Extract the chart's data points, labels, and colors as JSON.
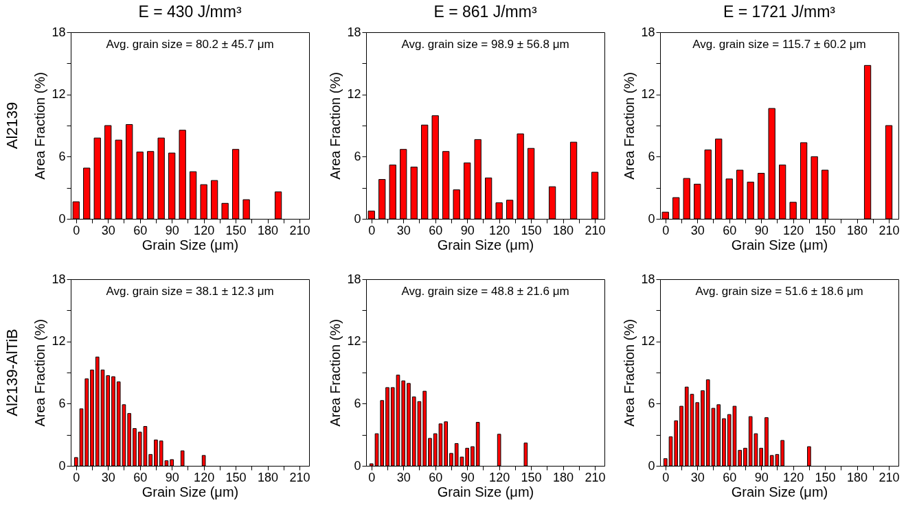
{
  "chart_data": [
    {
      "type": "bar",
      "title": "E = 430 J/mm³",
      "xlabel": "Grain Size (μm)",
      "ylabel": "Area Fraction (%)",
      "annotations": [
        "Avg. grain size = 80.2 ± 45.7 μm",
        "Al2139"
      ],
      "color": "#ff0000",
      "x": [
        0,
        10,
        20,
        30,
        40,
        50,
        60,
        70,
        80,
        90,
        100,
        110,
        120,
        130,
        140,
        150,
        160,
        190
      ],
      "values": [
        1.65,
        4.9,
        7.8,
        9.0,
        7.6,
        9.1,
        6.45,
        6.5,
        7.8,
        6.35,
        8.55,
        4.55,
        3.3,
        3.7,
        1.5,
        6.7,
        1.85,
        2.6
      ],
      "xlim": [
        -5,
        219
      ],
      "xticks": [
        0,
        {
          "value": 15,
          "label": null
        },
        30,
        {
          "value": 45,
          "label": null
        },
        60,
        {
          "value": 75,
          "label": null
        },
        90,
        {
          "value": 105,
          "label": null
        },
        120,
        {
          "value": 135,
          "label": null
        },
        150,
        {
          "value": 165,
          "label": null
        },
        180,
        {
          "value": 195,
          "label": null
        },
        210
      ],
      "ylim": [
        0,
        18
      ],
      "yticks": [
        0,
        {
          "value": 3,
          "label": null
        },
        6,
        {
          "value": 9,
          "label": null
        },
        12,
        {
          "value": 15,
          "label": null
        },
        18
      ]
    },
    {
      "type": "bar",
      "title": "E = 861 J/mm³",
      "xlabel": "Grain Size (μm)",
      "ylabel": "Area Fraction (%)",
      "annotations": [
        "Avg. grain size = 98.9 ± 56.8 μm"
      ],
      "color": "#ff0000",
      "x": [
        0,
        10,
        20,
        30,
        40,
        50,
        60,
        70,
        80,
        90,
        100,
        110,
        120,
        130,
        140,
        150,
        170,
        190,
        210
      ],
      "values": [
        0.75,
        3.8,
        5.2,
        6.7,
        5.0,
        9.05,
        9.95,
        6.5,
        2.8,
        5.4,
        7.65,
        3.95,
        1.55,
        1.8,
        8.2,
        6.8,
        3.1,
        7.4,
        4.5
      ],
      "xlim": [
        -5,
        219
      ],
      "xticks": [
        0,
        {
          "value": 15,
          "label": null
        },
        30,
        {
          "value": 45,
          "label": null
        },
        60,
        {
          "value": 75,
          "label": null
        },
        90,
        {
          "value": 105,
          "label": null
        },
        120,
        {
          "value": 135,
          "label": null
        },
        150,
        {
          "value": 165,
          "label": null
        },
        180,
        {
          "value": 195,
          "label": null
        },
        210
      ],
      "ylim": [
        0,
        18
      ],
      "yticks": [
        0,
        {
          "value": 3,
          "label": null
        },
        6,
        {
          "value": 9,
          "label": null
        },
        12,
        {
          "value": 15,
          "label": null
        },
        18
      ]
    },
    {
      "type": "bar",
      "title": "E = 1721 J/mm³",
      "xlabel": "Grain Size (μm)",
      "ylabel": "Area Fraction (%)",
      "annotations": [
        "Avg. grain size = 115.7 ± 60.2 μm"
      ],
      "color": "#ff0000",
      "x": [
        0,
        10,
        20,
        30,
        40,
        50,
        60,
        70,
        80,
        90,
        100,
        110,
        120,
        130,
        140,
        150,
        190,
        210
      ],
      "values": [
        0.65,
        2.05,
        3.9,
        3.35,
        6.65,
        7.7,
        3.85,
        4.7,
        3.55,
        4.4,
        10.65,
        5.2,
        1.6,
        7.35,
        6.0,
        4.7,
        14.8,
        9.0
      ],
      "xlim": [
        -5,
        219
      ],
      "xticks": [
        0,
        {
          "value": 15,
          "label": null
        },
        30,
        {
          "value": 45,
          "label": null
        },
        60,
        {
          "value": 75,
          "label": null
        },
        90,
        {
          "value": 105,
          "label": null
        },
        120,
        {
          "value": 135,
          "label": null
        },
        150,
        {
          "value": 165,
          "label": null
        },
        180,
        {
          "value": 195,
          "label": null
        },
        210
      ],
      "ylim": [
        0,
        18
      ],
      "yticks": [
        0,
        {
          "value": 3,
          "label": null
        },
        6,
        {
          "value": 9,
          "label": null
        },
        12,
        {
          "value": 15,
          "label": null
        },
        18
      ]
    },
    {
      "type": "bar",
      "xlabel": "Grain Size (μm)",
      "ylabel": "Area Fraction (%)",
      "annotations": [
        "Avg. grain size = 38.1 ± 12.3 μm",
        "Al2139-AlTiB"
      ],
      "color": "#ff0000",
      "x": [
        0,
        5,
        10,
        15,
        20,
        25,
        30,
        35,
        40,
        45,
        50,
        55,
        60,
        65,
        70,
        75,
        80,
        85,
        90,
        100,
        120
      ],
      "values": [
        0.8,
        5.5,
        8.4,
        9.25,
        10.5,
        9.25,
        8.7,
        8.6,
        8.1,
        5.9,
        5.05,
        3.6,
        3.25,
        3.8,
        1.1,
        2.5,
        2.4,
        0.5,
        0.6,
        1.45,
        1.0
      ],
      "xlim": [
        -5,
        219
      ],
      "xticks": [
        0,
        {
          "value": 15,
          "label": null
        },
        30,
        {
          "value": 45,
          "label": null
        },
        60,
        {
          "value": 75,
          "label": null
        },
        90,
        {
          "value": 105,
          "label": null
        },
        120,
        {
          "value": 135,
          "label": null
        },
        150,
        {
          "value": 165,
          "label": null
        },
        180,
        {
          "value": 195,
          "label": null
        },
        210
      ],
      "ylim": [
        0,
        18
      ],
      "yticks": [
        0,
        {
          "value": 3,
          "label": null
        },
        6,
        {
          "value": 9,
          "label": null
        },
        12,
        {
          "value": 15,
          "label": null
        },
        18
      ]
    },
    {
      "type": "bar",
      "xlabel": "Grain Size (μm)",
      "ylabel": "Area Fraction (%)",
      "annotations": [
        "Avg. grain size = 48.8 ± 21.6 μm"
      ],
      "color": "#ff0000",
      "x": [
        0,
        5,
        10,
        15,
        20,
        25,
        30,
        35,
        40,
        45,
        50,
        55,
        60,
        65,
        70,
        75,
        80,
        85,
        90,
        95,
        100,
        120,
        145
      ],
      "values": [
        0.2,
        3.1,
        6.3,
        7.55,
        7.55,
        8.75,
        8.2,
        7.95,
        6.65,
        6.2,
        7.2,
        2.65,
        3.1,
        4.05,
        4.25,
        1.2,
        2.15,
        0.85,
        1.7,
        1.85,
        4.2,
        3.05,
        2.2
      ],
      "xlim": [
        -5,
        219
      ],
      "xticks": [
        0,
        {
          "value": 15,
          "label": null
        },
        30,
        {
          "value": 45,
          "label": null
        },
        60,
        {
          "value": 75,
          "label": null
        },
        90,
        {
          "value": 105,
          "label": null
        },
        120,
        {
          "value": 135,
          "label": null
        },
        150,
        {
          "value": 165,
          "label": null
        },
        180,
        {
          "value": 195,
          "label": null
        },
        210
      ],
      "ylim": [
        0,
        18
      ],
      "yticks": [
        0,
        {
          "value": 3,
          "label": null
        },
        6,
        {
          "value": 9,
          "label": null
        },
        12,
        {
          "value": 15,
          "label": null
        },
        18
      ]
    },
    {
      "type": "bar",
      "xlabel": "Grain Size (μm)",
      "ylabel": "Area Fraction (%)",
      "annotations": [
        "Avg. grain size = 51.6 ± 18.6 μm"
      ],
      "color": "#ff0000",
      "x": [
        0,
        5,
        10,
        15,
        20,
        25,
        30,
        35,
        40,
        45,
        50,
        55,
        60,
        65,
        70,
        75,
        80,
        85,
        90,
        95,
        100,
        105,
        110,
        135
      ],
      "values": [
        0.7,
        2.8,
        4.35,
        5.75,
        7.6,
        6.9,
        6.1,
        7.25,
        8.3,
        5.55,
        5.9,
        4.55,
        4.95,
        5.75,
        1.5,
        1.7,
        4.75,
        3.1,
        1.7,
        4.65,
        1.0,
        1.1,
        2.45,
        1.85
      ],
      "xlim": [
        -5,
        219
      ],
      "xticks": [
        0,
        {
          "value": 15,
          "label": null
        },
        30,
        {
          "value": 45,
          "label": null
        },
        60,
        {
          "value": 75,
          "label": null
        },
        90,
        {
          "value": 105,
          "label": null
        },
        120,
        {
          "value": 135,
          "label": null
        },
        150,
        {
          "value": 165,
          "label": null
        },
        180,
        {
          "value": 195,
          "label": null
        },
        210
      ],
      "ylim": [
        0,
        18
      ],
      "yticks": [
        0,
        {
          "value": 3,
          "label": null
        },
        6,
        {
          "value": 9,
          "label": null
        },
        12,
        {
          "value": 15,
          "label": null
        },
        18
      ]
    }
  ]
}
